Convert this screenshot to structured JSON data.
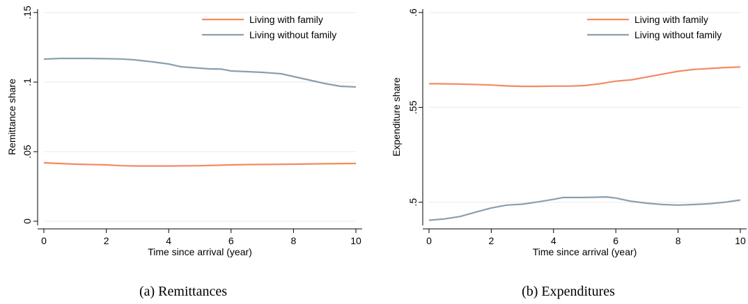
{
  "colors": {
    "series_with_family": "#f4895f",
    "series_without_family": "#8a9fae",
    "grid": "#eaeaea"
  },
  "chart_data": [
    {
      "type": "line",
      "caption": "(a) Remittances",
      "xlabel": "Time since arrival (year)",
      "ylabel": "Remittance share",
      "xlim": [
        0,
        10
      ],
      "ylim": [
        0,
        0.15
      ],
      "xticks": [
        0,
        2,
        4,
        6,
        8,
        10
      ],
      "xtick_labels": [
        "0",
        "2",
        "4",
        "6",
        "8",
        "10"
      ],
      "yticks": [
        0,
        0.05,
        0.1,
        0.15
      ],
      "ytick_labels": [
        "0",
        ".05",
        ".1",
        ".15"
      ],
      "grid": true,
      "legend_position": "top-right",
      "series": [
        {
          "name": "Living with family",
          "x": [
            0,
            1,
            2,
            2.5,
            3,
            3.5,
            4,
            4.5,
            5,
            5.5,
            6,
            6.5,
            7,
            7.5,
            8,
            9,
            10
          ],
          "y": [
            0.042,
            0.041,
            0.0405,
            0.0399,
            0.0397,
            0.0397,
            0.0397,
            0.0398,
            0.0399,
            0.0402,
            0.0405,
            0.0407,
            0.0408,
            0.0409,
            0.041,
            0.0413,
            0.0415
          ]
        },
        {
          "name": "Living without family",
          "x": [
            0,
            0.5,
            1,
            1.5,
            2,
            2.5,
            2.9,
            3.5,
            4,
            4.4,
            5,
            5.3,
            5.7,
            6,
            6.5,
            7,
            7.6,
            8,
            8.5,
            9,
            9.5,
            10
          ],
          "y": [
            0.1165,
            0.117,
            0.117,
            0.117,
            0.1168,
            0.1166,
            0.116,
            0.1145,
            0.113,
            0.111,
            0.11,
            0.1095,
            0.1093,
            0.108,
            0.1075,
            0.107,
            0.106,
            0.104,
            0.1015,
            0.099,
            0.097,
            0.0965
          ]
        }
      ]
    },
    {
      "type": "line",
      "caption": "(b) Expenditures",
      "xlabel": "Time since arrival (year)",
      "ylabel": "Expenditure share",
      "xlim": [
        0,
        10
      ],
      "ylim": [
        0.49,
        0.6
      ],
      "xticks": [
        0,
        2,
        4,
        6,
        8,
        10
      ],
      "xtick_labels": [
        "0",
        "2",
        "4",
        "6",
        "8",
        "10"
      ],
      "yticks": [
        0.5,
        0.55,
        0.6
      ],
      "ytick_labels": [
        ".5",
        ".55",
        ".6"
      ],
      "grid": true,
      "legend_position": "top-right",
      "series": [
        {
          "name": "Living with family",
          "x": [
            0,
            1,
            2,
            2.5,
            3,
            3.5,
            4,
            4.5,
            5,
            5.5,
            6,
            6.5,
            7,
            7.5,
            8,
            8.5,
            9,
            9.5,
            10
          ],
          "y": [
            0.5625,
            0.5623,
            0.5618,
            0.5613,
            0.5611,
            0.5611,
            0.5612,
            0.5612,
            0.5615,
            0.5625,
            0.5638,
            0.5645,
            0.566,
            0.5675,
            0.569,
            0.57,
            0.5705,
            0.571,
            0.5713
          ]
        },
        {
          "name": "Living without family",
          "x": [
            0,
            0.5,
            1,
            1.5,
            2,
            2.5,
            3,
            3.5,
            4,
            4.3,
            5,
            5.7,
            6,
            6.5,
            7,
            7.5,
            8,
            8.5,
            9,
            9.5,
            10
          ],
          "y": [
            0.4905,
            0.4912,
            0.4925,
            0.4948,
            0.497,
            0.4985,
            0.499,
            0.5002,
            0.5015,
            0.5025,
            0.5025,
            0.5028,
            0.5022,
            0.5005,
            0.4995,
            0.4988,
            0.4985,
            0.4988,
            0.4992,
            0.5,
            0.5012
          ]
        }
      ]
    }
  ]
}
